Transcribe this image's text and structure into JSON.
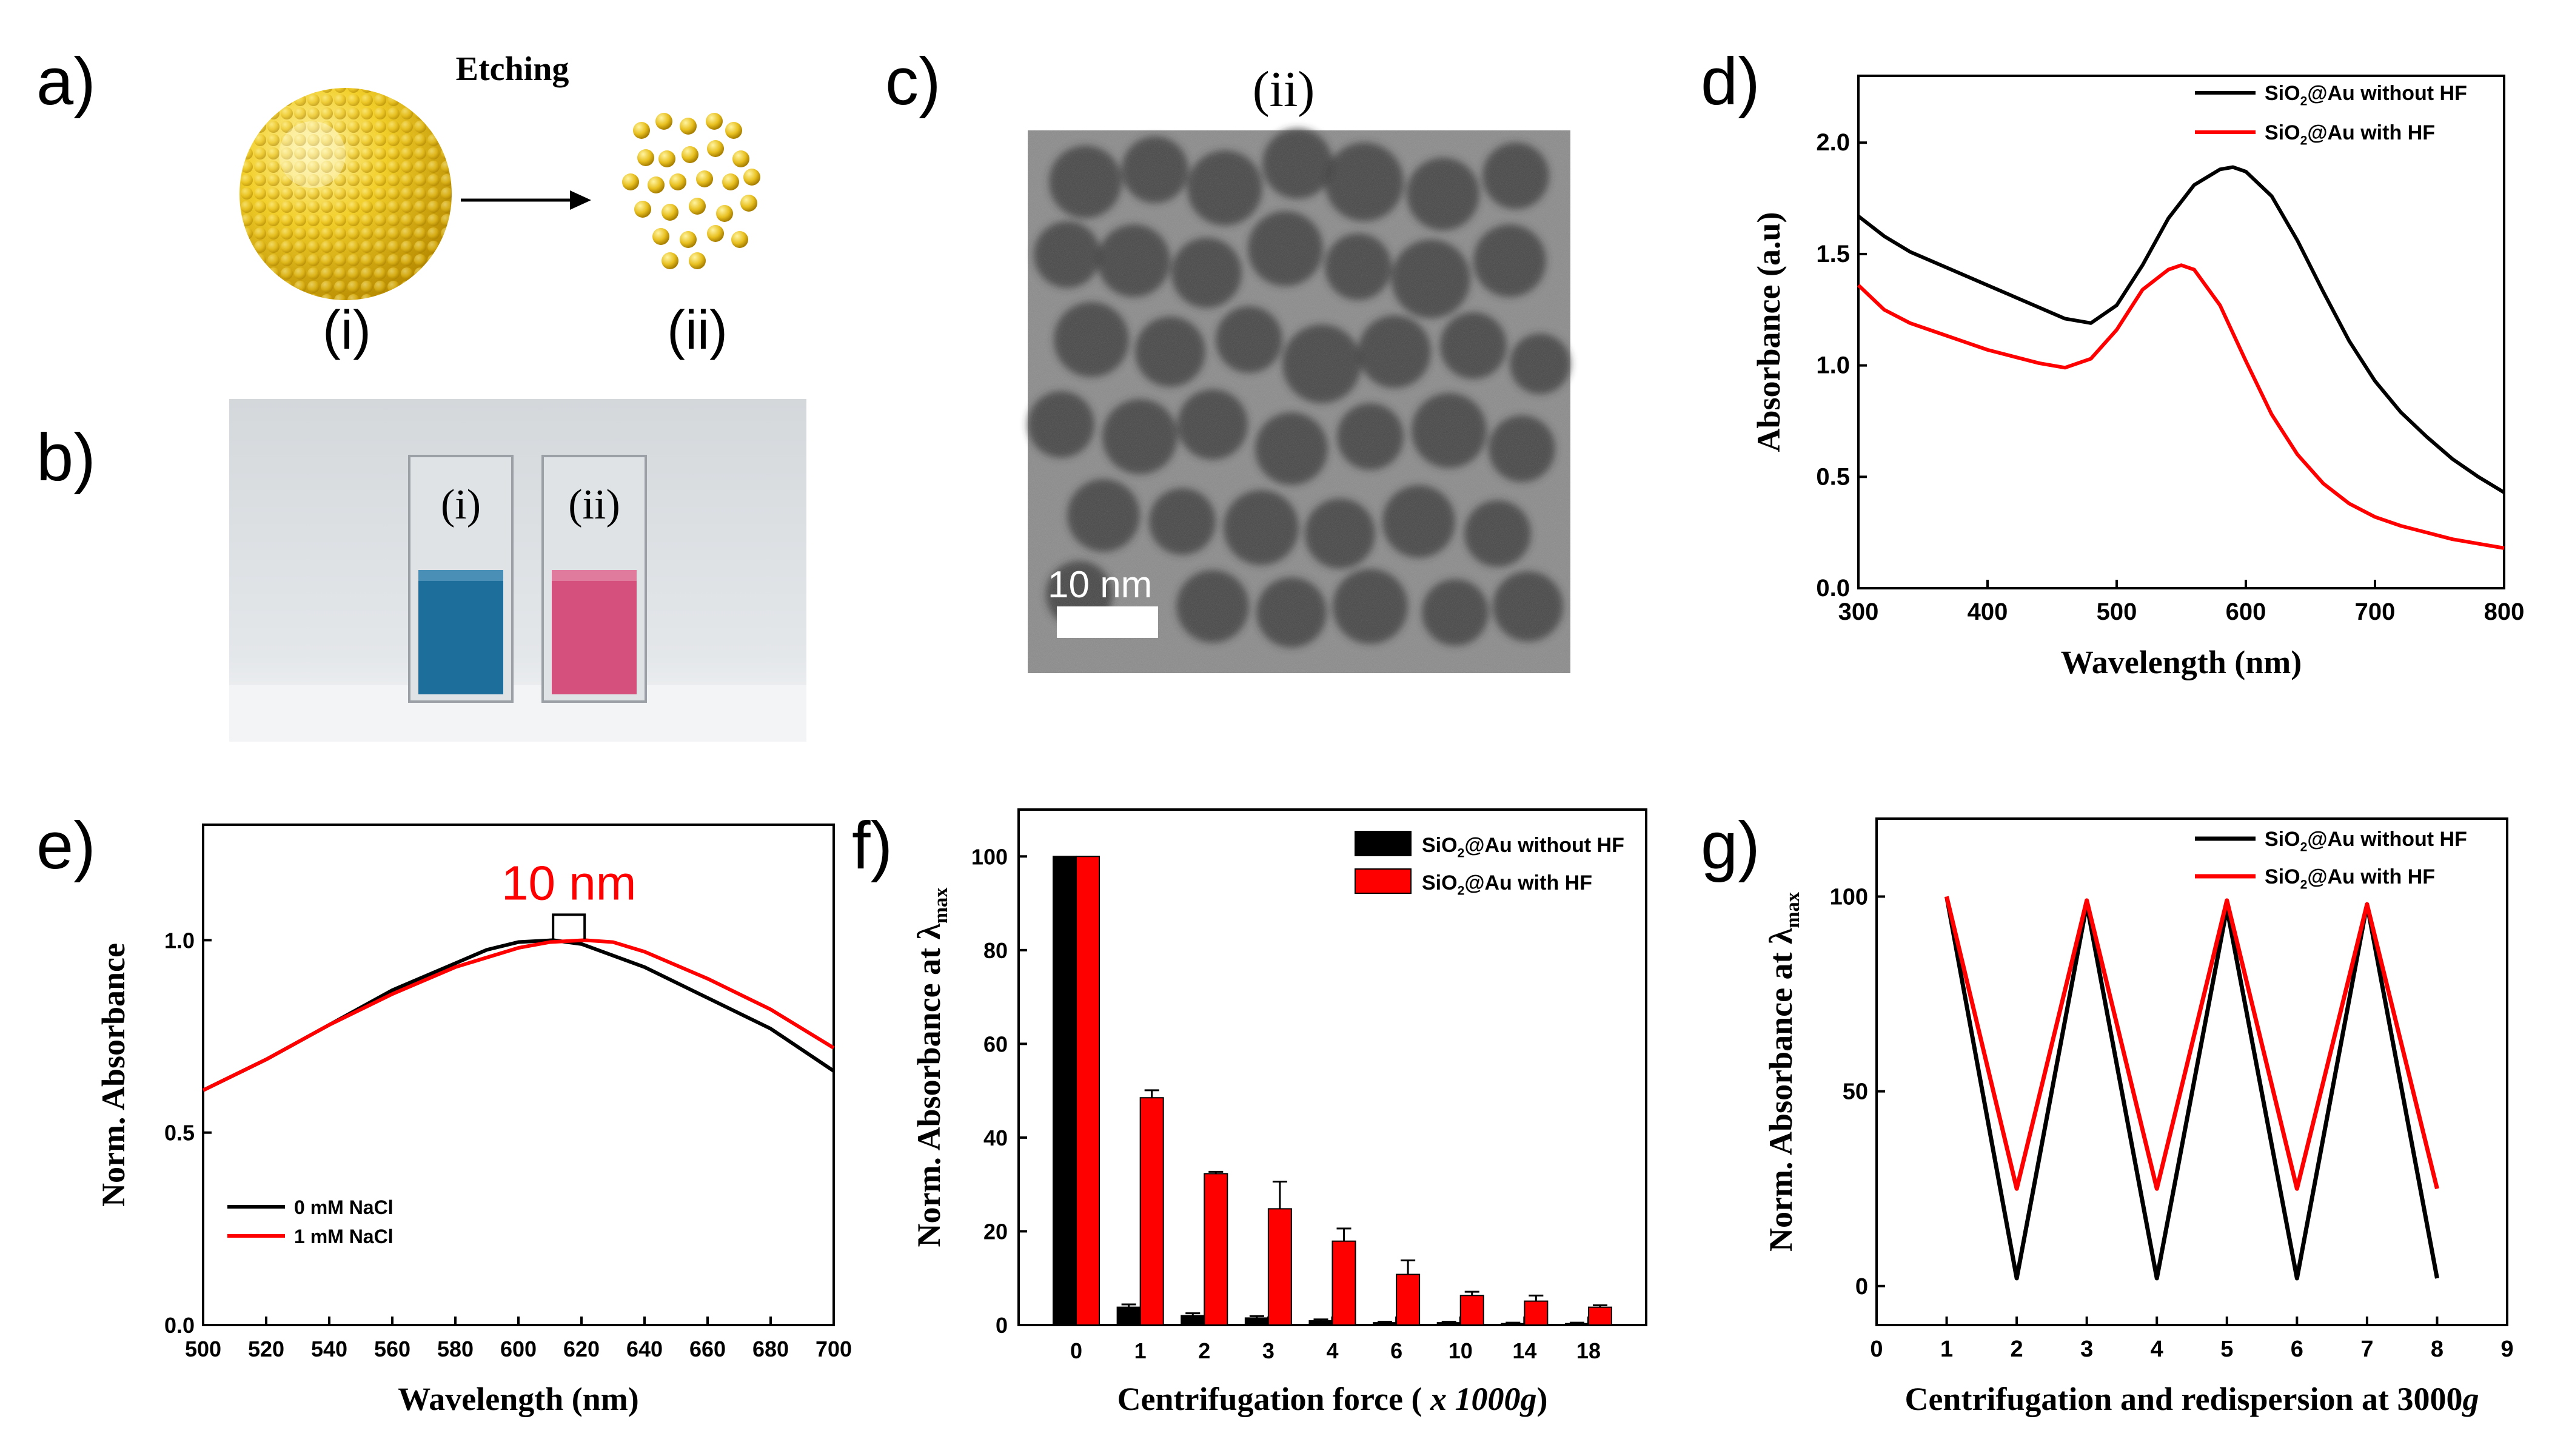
{
  "panel_labels": {
    "a": "a)",
    "b": "b)",
    "c": "c)",
    "d": "d)",
    "e": "e)",
    "f": "f)",
    "g": "g)"
  },
  "panel_a": {
    "etching_label": "Etching",
    "left_label": "(i)",
    "right_label": "(ii)"
  },
  "panel_b": {
    "cuvette_left_label": "(i)",
    "cuvette_right_label": "(ii)",
    "left_color": "#1d6e9a",
    "right_color": "#d6507e"
  },
  "panel_c": {
    "title": "(ii)",
    "scale_bar_label": "10 nm"
  },
  "legend_formula": {
    "main": "SiO",
    "sub": "2",
    "tail": "@Au"
  },
  "colors": {
    "black": "#000000",
    "red": "#ff0000",
    "gold": "#e8c020"
  },
  "chart_data": [
    {
      "id": "d",
      "type": "line",
      "xlabel": "Wavelength (nm)",
      "ylabel": "Absorbance (a.u)",
      "xlim": [
        300,
        800
      ],
      "ylim": [
        0.0,
        2.3
      ],
      "xticks": [
        300,
        400,
        500,
        600,
        700,
        800
      ],
      "yticks": [
        0.0,
        0.5,
        1.0,
        1.5,
        2.0
      ],
      "tick_decimals": 1,
      "series": [
        {
          "name": "SiO2@Au without HF",
          "legend_tail": " without HF",
          "color": "#000000",
          "x": [
            300,
            320,
            340,
            360,
            380,
            400,
            420,
            440,
            460,
            480,
            500,
            520,
            540,
            560,
            580,
            590,
            600,
            620,
            640,
            660,
            680,
            700,
            720,
            740,
            760,
            780,
            800
          ],
          "y": [
            1.67,
            1.58,
            1.51,
            1.46,
            1.41,
            1.36,
            1.31,
            1.26,
            1.21,
            1.19,
            1.27,
            1.45,
            1.66,
            1.81,
            1.88,
            1.89,
            1.87,
            1.76,
            1.56,
            1.33,
            1.11,
            0.93,
            0.79,
            0.68,
            0.58,
            0.5,
            0.43
          ]
        },
        {
          "name": "SiO2@Au with HF",
          "legend_tail": " with HF",
          "color": "#ff0000",
          "x": [
            300,
            320,
            340,
            360,
            380,
            400,
            420,
            440,
            460,
            480,
            500,
            520,
            540,
            550,
            560,
            580,
            600,
            620,
            640,
            660,
            680,
            700,
            720,
            740,
            760,
            780,
            800
          ],
          "y": [
            1.36,
            1.25,
            1.19,
            1.15,
            1.11,
            1.07,
            1.04,
            1.01,
            0.99,
            1.03,
            1.16,
            1.34,
            1.43,
            1.45,
            1.43,
            1.27,
            1.02,
            0.78,
            0.6,
            0.47,
            0.38,
            0.32,
            0.28,
            0.25,
            0.22,
            0.2,
            0.18
          ]
        }
      ]
    },
    {
      "id": "e",
      "type": "line",
      "xlabel": "Wavelength (nm)",
      "ylabel": "Norm. Absorbance",
      "xlim": [
        500,
        700
      ],
      "ylim": [
        0.0,
        1.3
      ],
      "xticks": [
        500,
        520,
        540,
        560,
        580,
        600,
        620,
        640,
        660,
        680,
        700
      ],
      "yticks": [
        0.0,
        0.5,
        1.0
      ],
      "tick_decimals": 1,
      "annotation": "10 nm",
      "annotation_range": [
        611,
        621
      ],
      "series": [
        {
          "name": "0 mM NaCl",
          "color": "#000000",
          "x": [
            500,
            520,
            540,
            560,
            580,
            590,
            600,
            611,
            620,
            640,
            660,
            680,
            700
          ],
          "y": [
            0.61,
            0.69,
            0.78,
            0.87,
            0.94,
            0.975,
            0.995,
            1.0,
            0.99,
            0.93,
            0.85,
            0.77,
            0.66
          ]
        },
        {
          "name": "1 mM NaCl",
          "color": "#ff0000",
          "x": [
            500,
            520,
            540,
            560,
            580,
            600,
            610,
            621,
            630,
            640,
            660,
            680,
            700
          ],
          "y": [
            0.61,
            0.69,
            0.78,
            0.86,
            0.93,
            0.98,
            0.995,
            1.0,
            0.995,
            0.97,
            0.9,
            0.82,
            0.72
          ]
        }
      ]
    },
    {
      "id": "f",
      "type": "bar",
      "xlabel": "Centrifugation force (x 1000g)",
      "xlabel_parts": {
        "main": "Centrifugation force (",
        "italic": " x 1000g",
        "close": ")"
      },
      "ylabel": "Norm. Absorbance at λmax",
      "ylabel_parts": {
        "main": "Norm. Absorbance at λ",
        "sub": "max"
      },
      "categories": [
        "0",
        "1",
        "2",
        "3",
        "4",
        "6",
        "10",
        "14",
        "18"
      ],
      "ylim": [
        0,
        110
      ],
      "yticks": [
        0,
        20,
        40,
        60,
        80,
        100
      ],
      "series": [
        {
          "name": "SiO2@Au without HF",
          "legend_tail": " without HF",
          "color": "#000000",
          "values": [
            100,
            3.8,
            2.0,
            1.5,
            0.9,
            0.5,
            0.5,
            0.3,
            0.3
          ],
          "errors": [
            0,
            0.6,
            0.5,
            0.4,
            0.3,
            0.2,
            0.2,
            0.2,
            0.2
          ]
        },
        {
          "name": "SiO2@Au with HF",
          "legend_tail": " with HF",
          "color": "#ff0000",
          "values": [
            100,
            48.5,
            32.3,
            24.8,
            17.9,
            10.8,
            6.3,
            5.1,
            3.8
          ],
          "errors": [
            0,
            1.6,
            0.4,
            5.8,
            2.7,
            3.0,
            0.8,
            1.2,
            0.4
          ]
        }
      ]
    },
    {
      "id": "g",
      "type": "line",
      "xlabel": "Centrifugation and redispersion at 3000g",
      "xlabel_parts": {
        "main": "Centrifugation and redispersion at 3000",
        "italic": "g"
      },
      "ylabel": "Norm. Absorbance at λmax",
      "ylabel_parts": {
        "main": "Norm. Absorbance at λ",
        "sub": "max"
      },
      "xlim": [
        0,
        9
      ],
      "ylim": [
        -10,
        120
      ],
      "xticks": [
        0,
        1,
        2,
        3,
        4,
        5,
        6,
        7,
        8,
        9
      ],
      "yticks": [
        0,
        50,
        100
      ],
      "tick_decimals": 0,
      "series": [
        {
          "name": "SiO2@Au without HF",
          "legend_tail": " without HF",
          "color": "#000000",
          "x": [
            1,
            2,
            3,
            4,
            5,
            6,
            7,
            8
          ],
          "y": [
            100,
            2,
            98,
            2,
            97,
            2,
            98,
            2
          ]
        },
        {
          "name": "SiO2@Au with HF",
          "legend_tail": " with HF",
          "color": "#ff0000",
          "x": [
            1,
            2,
            3,
            4,
            5,
            6,
            7,
            8
          ],
          "y": [
            100,
            25,
            99,
            25,
            99,
            25,
            98,
            25
          ]
        }
      ]
    }
  ]
}
